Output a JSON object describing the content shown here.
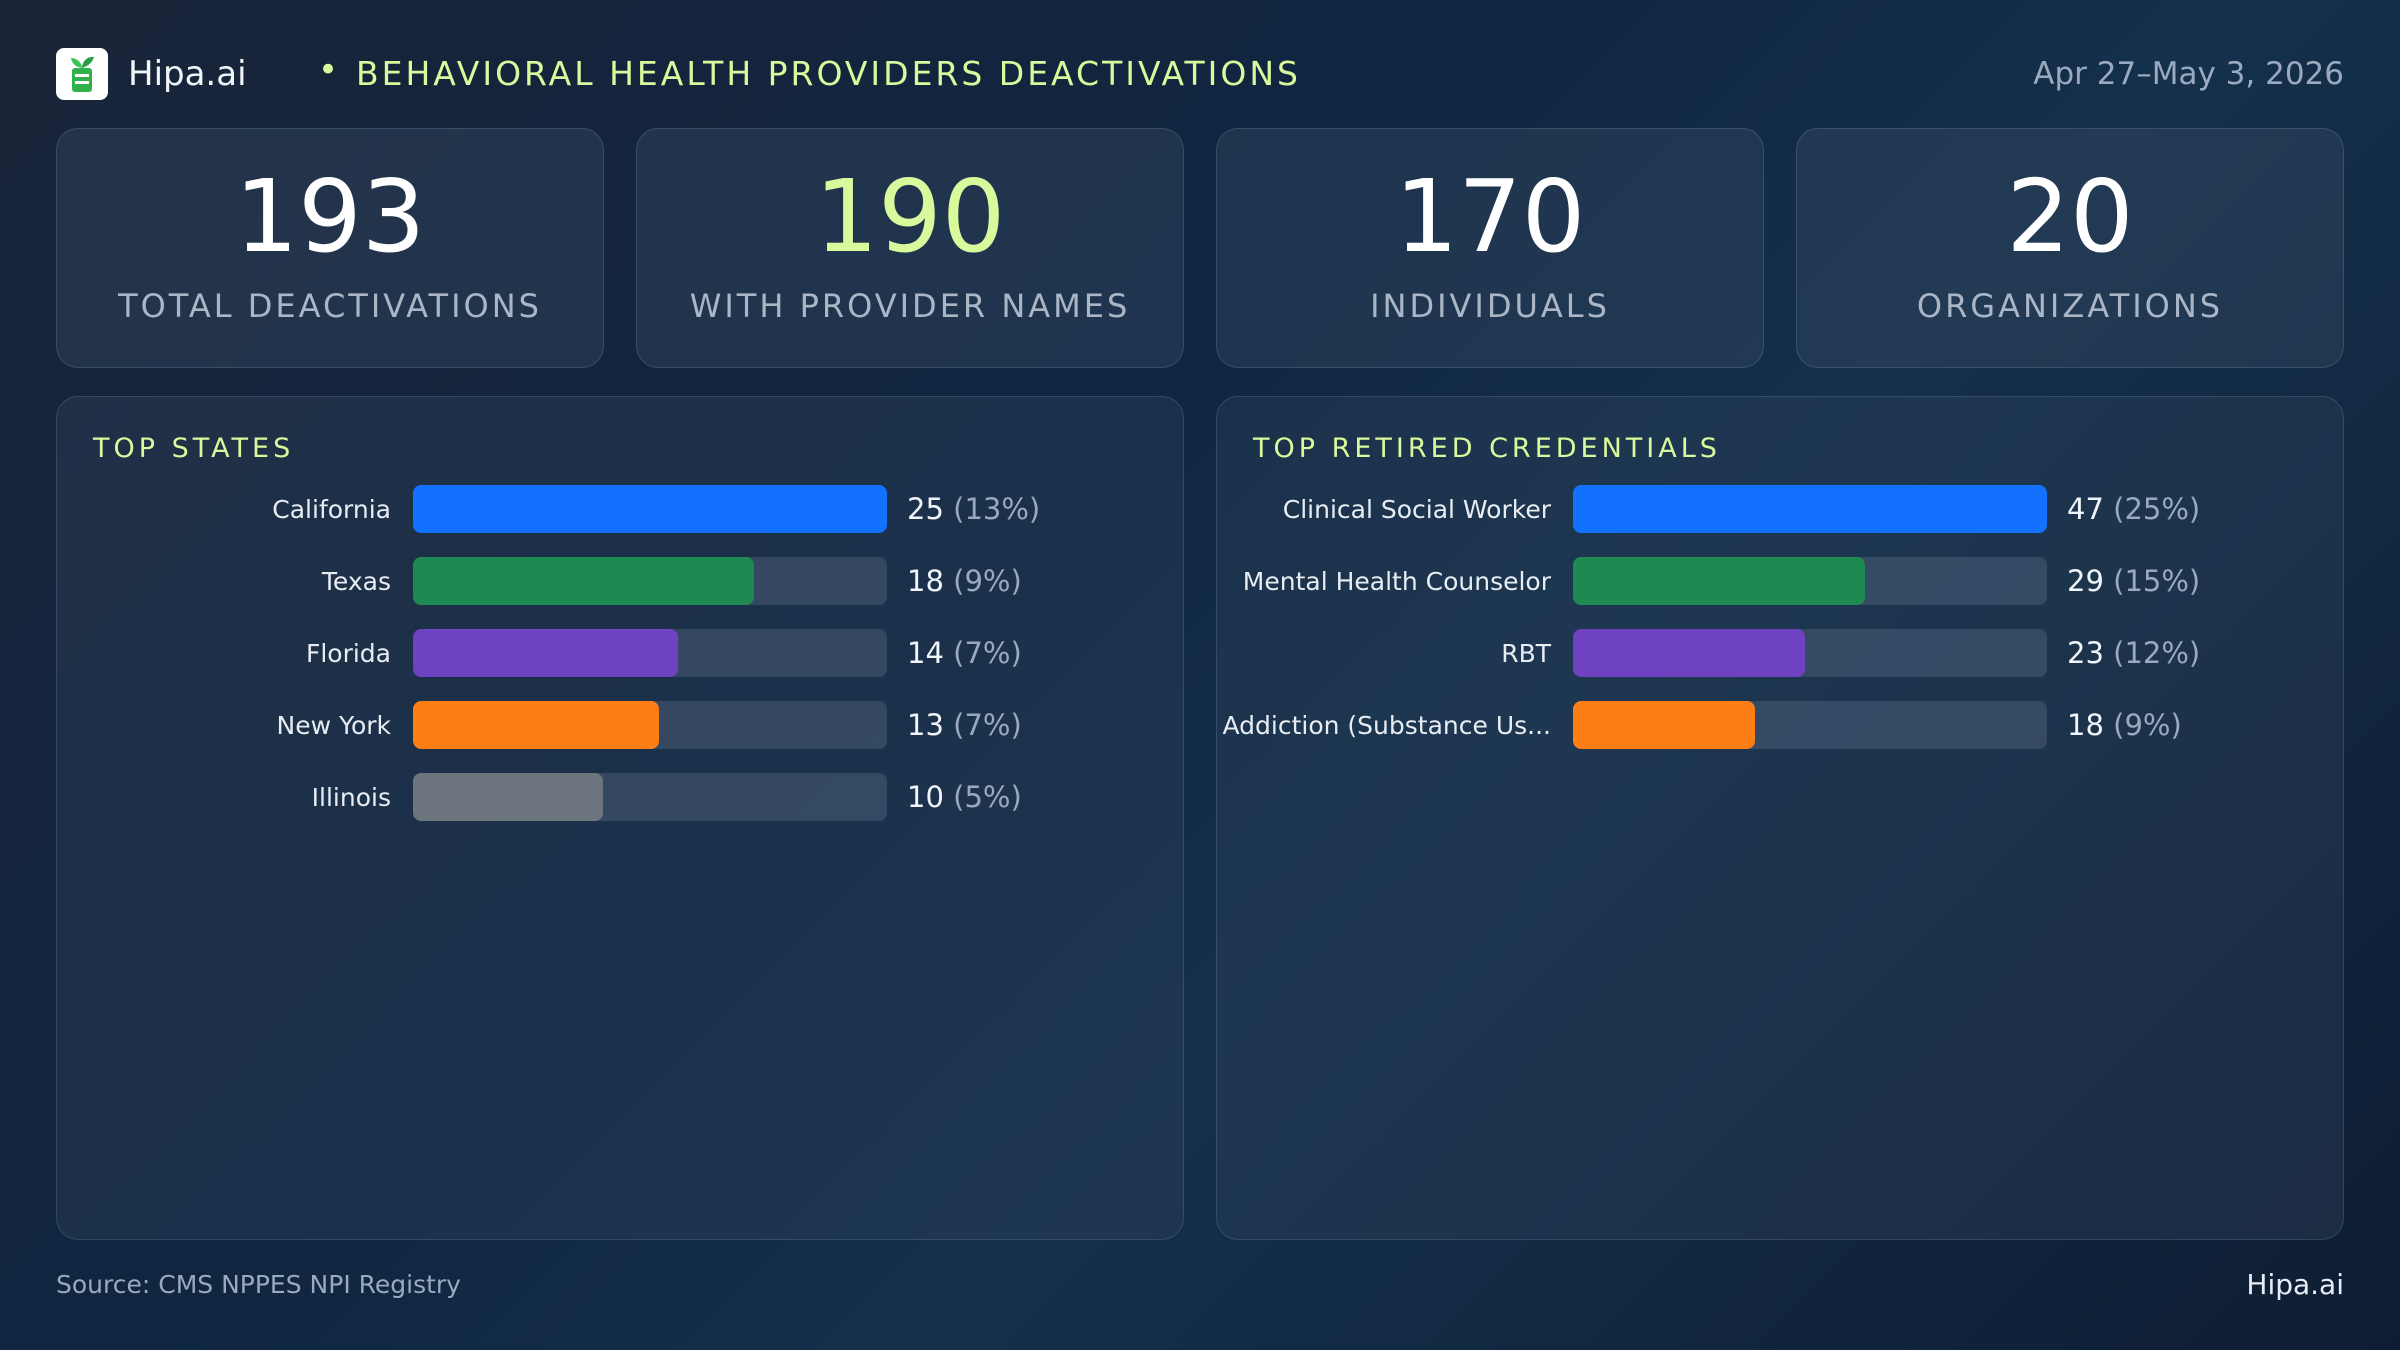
{
  "header": {
    "brand": "Hipa.ai",
    "separator": "•",
    "title": "BEHAVIORAL HEALTH PROVIDERS DEACTIVATIONS",
    "date_range": "Apr 27–May 3, 2026",
    "logo_icon": "plant-cup-logo-icon"
  },
  "kpis": [
    {
      "value": "193",
      "label": "TOTAL DEACTIVATIONS",
      "accent": false
    },
    {
      "value": "190",
      "label": "WITH PROVIDER NAMES",
      "accent": true
    },
    {
      "value": "170",
      "label": "INDIVIDUALS",
      "accent": false
    },
    {
      "value": "20",
      "label": "ORGANIZATIONS",
      "accent": false
    }
  ],
  "colors": {
    "accent": "#d9f99d",
    "blue": "#1271ff",
    "green": "#1e8a52",
    "purple": "#6f42c1",
    "orange": "#fd7e14",
    "gray": "#6c757d"
  },
  "chart_data": [
    {
      "type": "bar",
      "orientation": "horizontal",
      "title": "TOP STATES",
      "categories": [
        "California",
        "Texas",
        "Florida",
        "New York",
        "Illinois"
      ],
      "values": [
        25,
        18,
        14,
        13,
        10
      ],
      "value_labels": [
        "25",
        "18",
        "14",
        "13",
        "10"
      ],
      "percent_labels": [
        "(13%)",
        "(9%)",
        "(7%)",
        "(7%)",
        "(5%)"
      ],
      "bar_colors": [
        "#1271ff",
        "#1e8a52",
        "#6f42c1",
        "#fd7e14",
        "#6c757d"
      ],
      "xlim": [
        0,
        25
      ]
    },
    {
      "type": "bar",
      "orientation": "horizontal",
      "title": "TOP RETIRED CREDENTIALS",
      "categories": [
        "Clinical Social Worker",
        "Mental Health Counselor",
        "RBT",
        "Addiction (Substance Us..."
      ],
      "values": [
        47,
        29,
        23,
        18
      ],
      "value_labels": [
        "47",
        "29",
        "23",
        "18"
      ],
      "percent_labels": [
        "(25%)",
        "(15%)",
        "(12%)",
        "(9%)"
      ],
      "bar_colors": [
        "#1271ff",
        "#1e8a52",
        "#6f42c1",
        "#fd7e14"
      ],
      "xlim": [
        0,
        47
      ]
    }
  ],
  "footer": {
    "source": "Source: CMS NPPES NPI Registry",
    "brand": "Hipa.ai"
  }
}
